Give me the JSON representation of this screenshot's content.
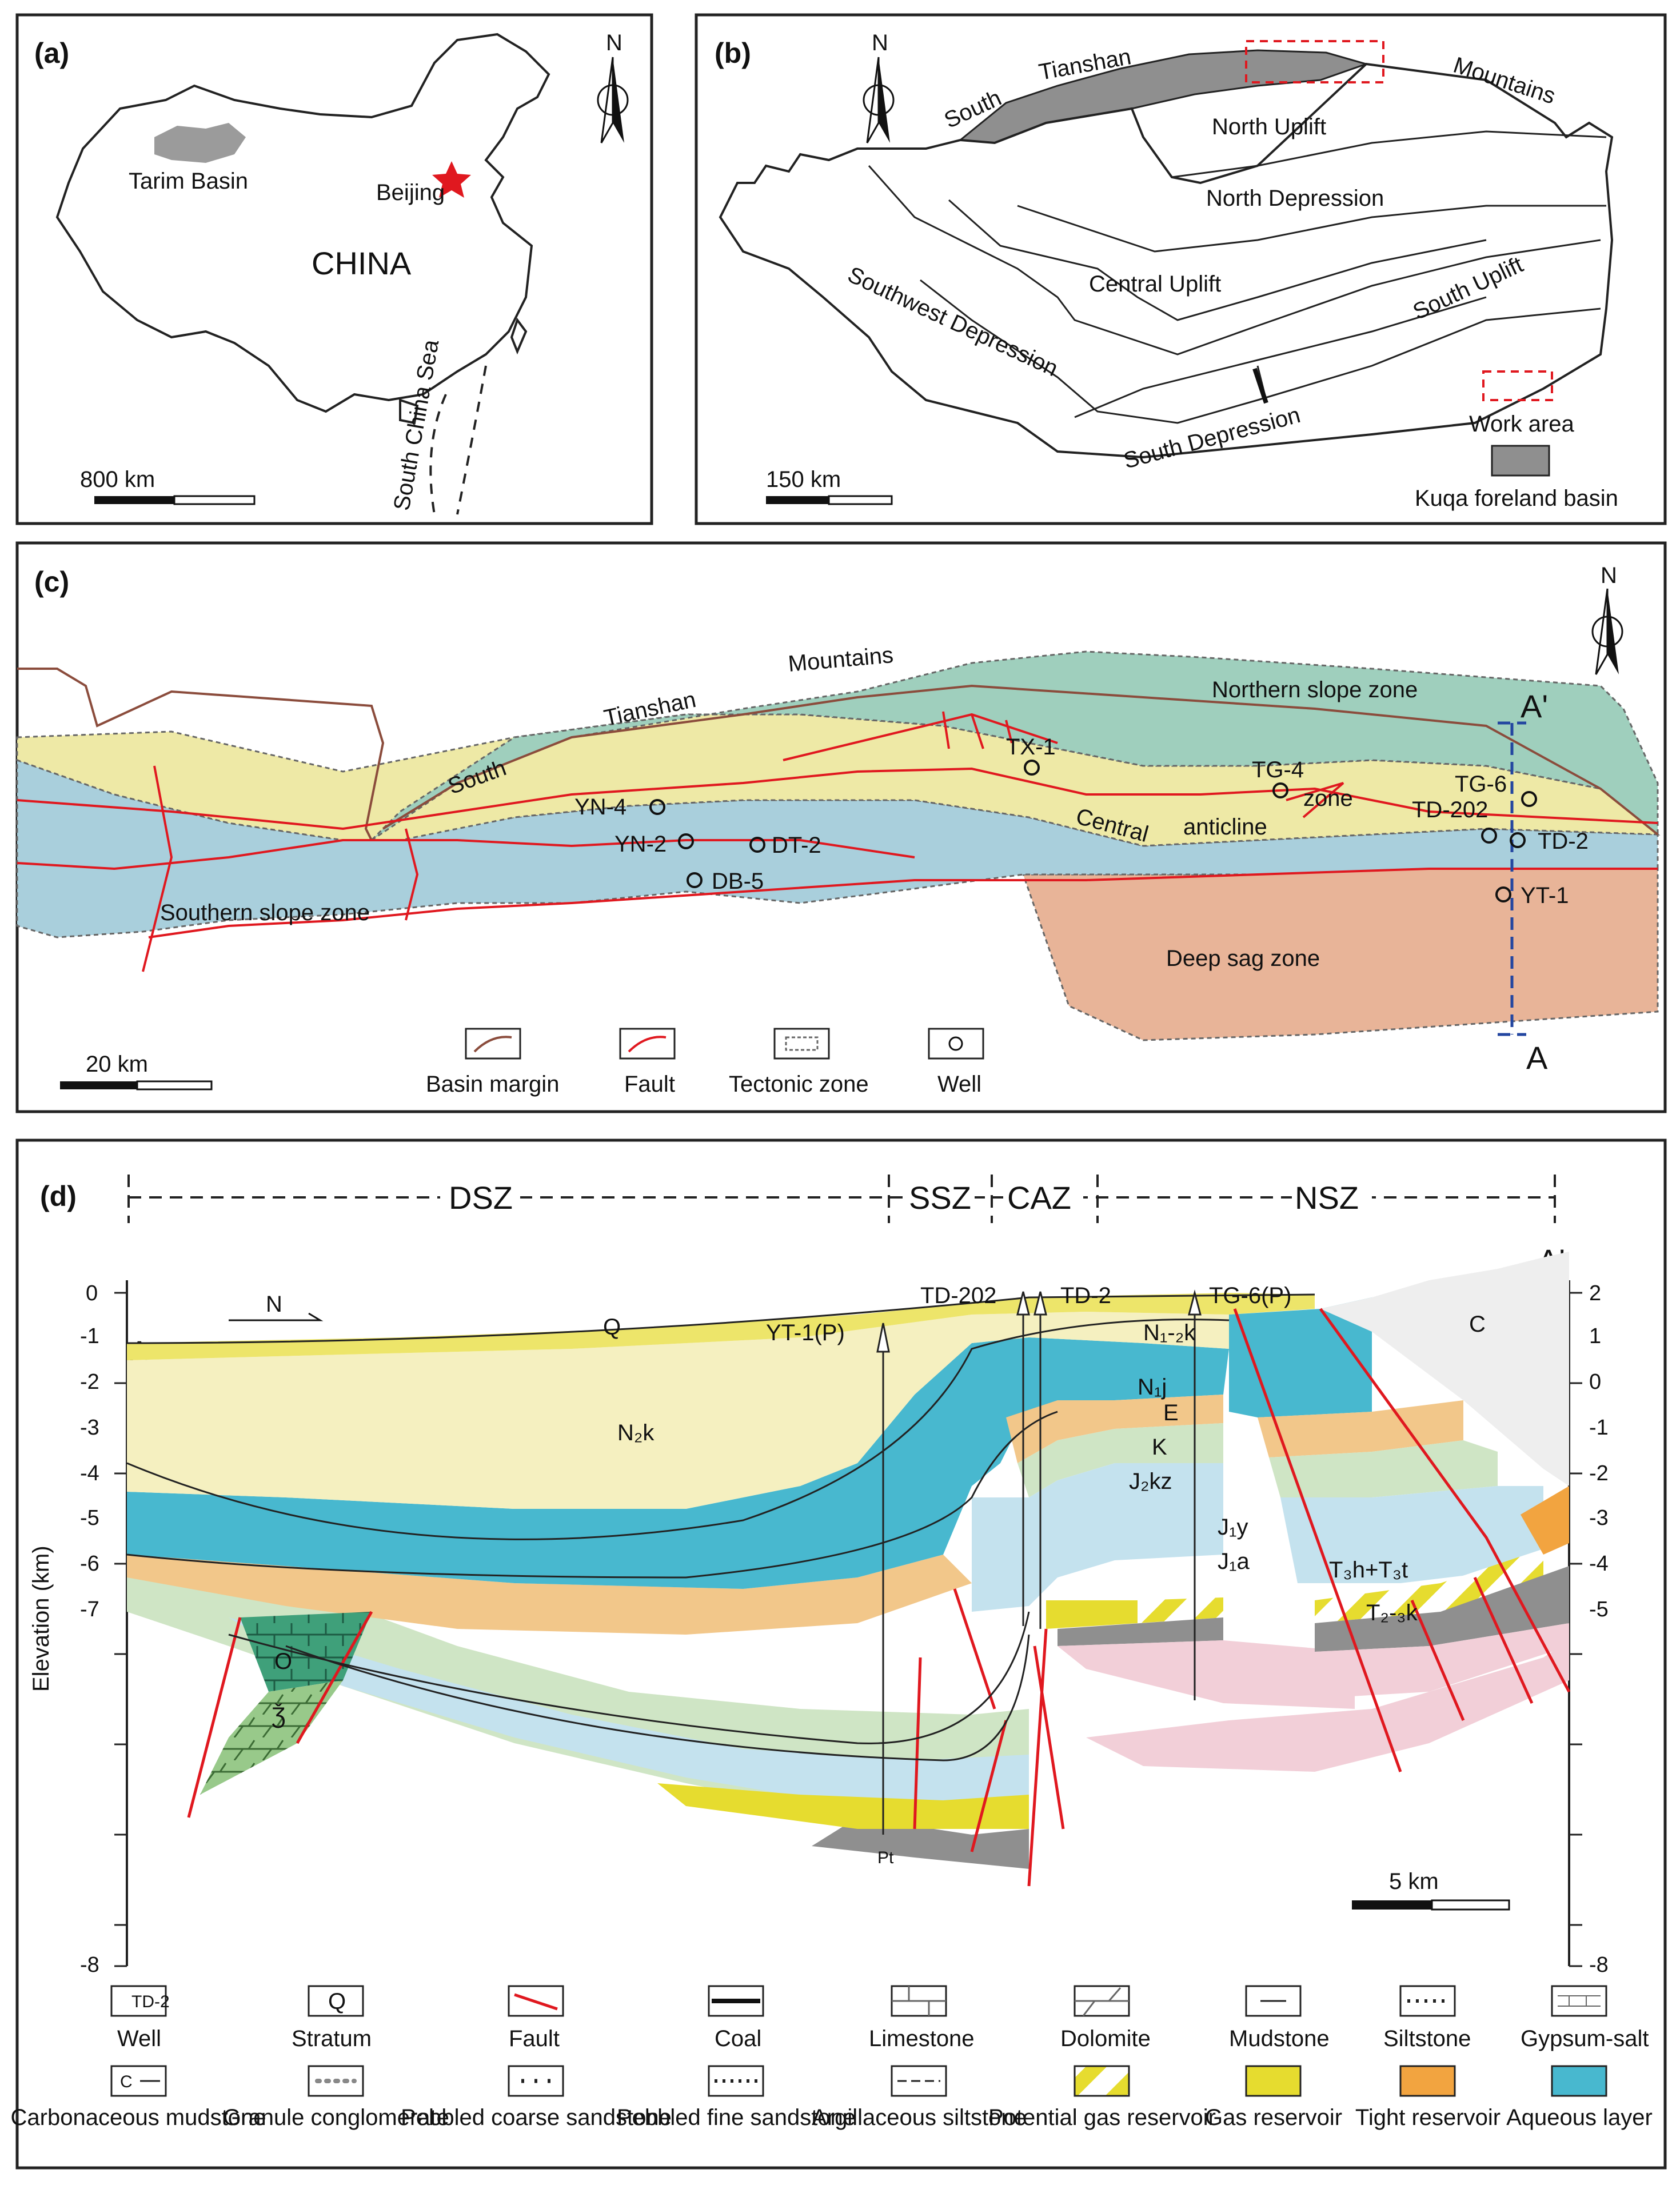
{
  "panel_a": {
    "label": "(a)",
    "north": "N",
    "tarim": "Tarim Basin",
    "beijing": "Beijing",
    "china": "CHINA",
    "sea": "South China Sea",
    "scale": "800 km"
  },
  "panel_b": {
    "label": "(b)",
    "north": "N",
    "south": "South",
    "tianshan": "Tianshan",
    "mountains": "Mountains",
    "north_uplift": "North Uplift",
    "north_depression": "North Depression",
    "central_uplift": "Central Uplift",
    "southwest_depression": "Southwest Depression",
    "south_uplift": "South Uplift",
    "south_depression": "South Depression",
    "scale": "150 km",
    "legend_work_area": "Work area",
    "legend_kuqa": "Kuqa foreland basin"
  },
  "panel_c": {
    "label": "(c)",
    "north": "N",
    "south": "South",
    "tianshan": "Tianshan",
    "mountains": "Mountains",
    "northern_slope": "Northern slope zone",
    "southern_slope": "Southern slope zone",
    "deep_sag": "Deep sag zone",
    "central": "Central",
    "anticline": "anticline",
    "zone": "zone",
    "a_label": "A",
    "a_prime": "A'",
    "scale": "20 km",
    "wells": [
      "TX-1",
      "TG-4",
      "TG-6",
      "TD-202",
      "TD-2",
      "YT-1",
      "YN-4",
      "YN-2",
      "DT-2",
      "DB-5"
    ],
    "legend": [
      "Basin margin",
      "Fault",
      "Tectonic zone",
      "Well"
    ]
  },
  "panel_d": {
    "label": "(d)",
    "zones": [
      "DSZ",
      "SSZ",
      "CAZ",
      "NSZ"
    ],
    "a_label": "A",
    "a_prime": "A'",
    "north": "N",
    "ylabel": "Elevation (km)",
    "yticks": [
      "2",
      "1",
      "0",
      "-1",
      "-2",
      "-3",
      "-4",
      "-5",
      "-6",
      "-7",
      "-8"
    ],
    "wells": [
      "YT-1(P)",
      "TD-202",
      "TD-2",
      "TG-6(P)"
    ],
    "strata": [
      "Q",
      "N₂k",
      "N₁-₂k",
      "N₁j",
      "E",
      "K",
      "J₂kz",
      "J₁y",
      "J₁a",
      "T₃h+T₃t",
      "T₂-₃k",
      "C",
      "O",
      "Ǯ",
      "Pt"
    ],
    "scale": "5 km"
  },
  "legend_d": {
    "row1": [
      "Well",
      "Stratum",
      "Fault",
      "Coal",
      "Limestone",
      "Dolomite",
      "Mudstone",
      "Siltstone",
      "Gypsum-salt"
    ],
    "row2": [
      "Carbonaceous mudstone",
      "Granule conglomerate",
      "Pebbled coarse sandstone",
      "Pebbled fine sandstone",
      "Argillaceous siltstone",
      "Potential gas reservoir",
      "Gas reservoir",
      "Tight reservoir",
      "Aqueous layer"
    ],
    "well_icon": "TD-2",
    "stratum_icon": "Q",
    "carb_icon": "C"
  },
  "colors": {
    "yellow_light": "#f5f0c0",
    "yellow_q": "#ede56a",
    "aqueous": "#48b8cf",
    "tight": "#f2c78a",
    "green_light": "#cfe5c5",
    "blue_light": "#c4e2ee",
    "gas": "#e6dc2f",
    "grey": "#8f8f8f",
    "pink": "#f2cfd8",
    "slope_green": "#9fcfbd",
    "slope_blue": "#a9cfdc",
    "anticline_yellow": "#eee9a6",
    "sag": "#e8b498",
    "fault": "#e0181f",
    "margin": "#8b4c3c"
  }
}
